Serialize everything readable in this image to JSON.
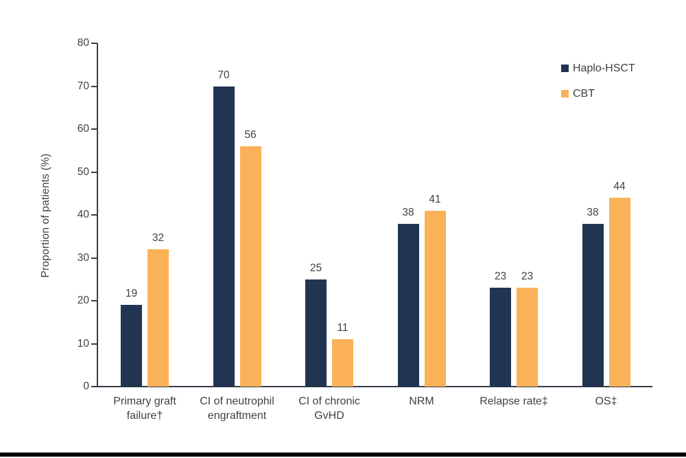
{
  "figure": {
    "background": "#ffffff",
    "bottom_divider_color": "#000000"
  },
  "chart_data": {
    "type": "bar",
    "title": "",
    "categories": [
      "Primary graft\nfailure†",
      "CI of neutrophil\nengraftment",
      "CI of chronic\nGvHD",
      "NRM",
      "Relapse rate‡",
      "OS‡"
    ],
    "series": [
      {
        "name": "Haplo-HSCT",
        "color": "#213452",
        "values": [
          19,
          70,
          25,
          38,
          23,
          38
        ]
      },
      {
        "name": "CBT",
        "color": "#FBB158",
        "values": [
          32,
          56,
          11,
          41,
          23,
          44
        ]
      }
    ],
    "xlabel": "",
    "ylabel": "Proportion of patients (%)",
    "ylim": [
      0,
      80
    ],
    "yticks": [
      0,
      10,
      20,
      30,
      40,
      50,
      60,
      70,
      80
    ],
    "data_labels": true,
    "grid": false,
    "legend_position": "top-right",
    "axis_color": "#333c49",
    "text_color": "#3f3f3f"
  }
}
